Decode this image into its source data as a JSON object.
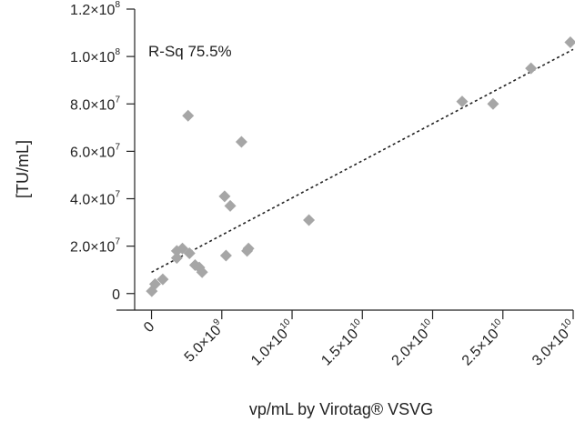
{
  "chart_data": {
    "type": "scatter",
    "annotation": "R-Sq 75.5%",
    "ylabel": "[TU/mL]",
    "xlabel": "vp/mL by Virotag® VSVG",
    "xlim": [
      -1200000000.0,
      30000000000.0
    ],
    "ylim": [
      -7000000.0,
      120000000.0
    ],
    "x_ticks": [
      {
        "value": 0,
        "mantissa": "0",
        "exp": ""
      },
      {
        "value": 5000000000.0,
        "mantissa": "5.0×10",
        "exp": "9"
      },
      {
        "value": 10000000000.0,
        "mantissa": "1.0×10",
        "exp": "10"
      },
      {
        "value": 15000000000.0,
        "mantissa": "1.5×10",
        "exp": "10"
      },
      {
        "value": 20000000000.0,
        "mantissa": "2.0×10",
        "exp": "10"
      },
      {
        "value": 25000000000.0,
        "mantissa": "2.5×10",
        "exp": "10"
      },
      {
        "value": 30000000000.0,
        "mantissa": "3.0×10",
        "exp": "10"
      }
    ],
    "y_ticks": [
      {
        "value": 0,
        "mantissa": "0",
        "exp": ""
      },
      {
        "value": 20000000.0,
        "mantissa": "2.0×10",
        "exp": "7"
      },
      {
        "value": 40000000.0,
        "mantissa": "4.0×10",
        "exp": "7"
      },
      {
        "value": 60000000.0,
        "mantissa": "6.0×10",
        "exp": "7"
      },
      {
        "value": 80000000.0,
        "mantissa": "8.0×10",
        "exp": "7"
      },
      {
        "value": 100000000.0,
        "mantissa": "1.0×10",
        "exp": "8"
      },
      {
        "value": 120000000.0,
        "mantissa": "1.2×10",
        "exp": "8"
      }
    ],
    "trendline": {
      "x": [
        0,
        30000000000.0
      ],
      "y": [
        9000000.0,
        103000000.0
      ]
    },
    "points": [
      {
        "x": 20000000.0,
        "y": 1000000.0
      },
      {
        "x": 250000000.0,
        "y": 4000000.0
      },
      {
        "x": 800000000.0,
        "y": 6000000.0
      },
      {
        "x": 1800000000.0,
        "y": 15000000.0
      },
      {
        "x": 1800000000.0,
        "y": 18000000.0
      },
      {
        "x": 2200000000.0,
        "y": 19000000.0
      },
      {
        "x": 2600000000.0,
        "y": 75000000.0
      },
      {
        "x": 2700000000.0,
        "y": 17000000.0
      },
      {
        "x": 3100000000.0,
        "y": 12000000.0
      },
      {
        "x": 3400000000.0,
        "y": 11000000.0
      },
      {
        "x": 3600000000.0,
        "y": 9000000.0
      },
      {
        "x": 5200000000.0,
        "y": 41000000.0
      },
      {
        "x": 5300000000.0,
        "y": 16000000.0
      },
      {
        "x": 5600000000.0,
        "y": 37000000.0
      },
      {
        "x": 6400000000.0,
        "y": 64000000.0
      },
      {
        "x": 6800000000.0,
        "y": 18000000.0
      },
      {
        "x": 6900000000.0,
        "y": 19000000.0
      },
      {
        "x": 11200000000.0,
        "y": 31000000.0
      },
      {
        "x": 22100000000.0,
        "y": 81000000.0
      },
      {
        "x": 24300000000.0,
        "y": 80000000.0
      },
      {
        "x": 27000000000.0,
        "y": 95000000.0
      },
      {
        "x": 29800000000.0,
        "y": 106000000.0
      }
    ],
    "marker_color": "#a6a6a6",
    "grid": false,
    "legend": "none"
  }
}
